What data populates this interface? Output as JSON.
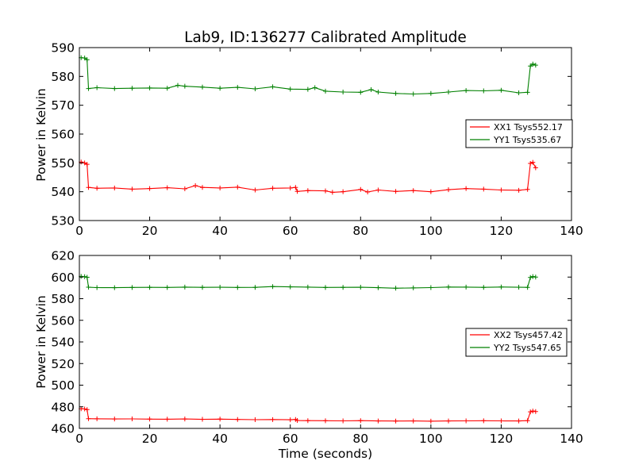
{
  "chart_data": [
    {
      "type": "line",
      "title": "Lab9, ID:136277 Calibrated Amplitude",
      "xlabel": "",
      "ylabel": "Power in Kelvin",
      "xlim": [
        0,
        140
      ],
      "ylim": [
        530,
        590
      ],
      "xticks": [
        "0",
        "20",
        "40",
        "60",
        "80",
        "100",
        "120",
        "140"
      ],
      "yticks": [
        "530",
        "540",
        "550",
        "560",
        "570",
        "580",
        "590"
      ],
      "legend_position": "right",
      "grid": false,
      "series": [
        {
          "name": "XX1 Tsys552.17",
          "color": "#ff0000",
          "marker": "+",
          "x": [
            0.5,
            1.5,
            2.2,
            2.6,
            5,
            10,
            15,
            20,
            25,
            30,
            33,
            35,
            40,
            45,
            50,
            55,
            60,
            61.5,
            62,
            65,
            70,
            72,
            75,
            80,
            82,
            85,
            90,
            95,
            100,
            105,
            110,
            115,
            120,
            125,
            127.5,
            128.3,
            129,
            129.8
          ],
          "values": [
            550.3,
            550.0,
            549.5,
            541.5,
            541.2,
            541.3,
            540.9,
            541.1,
            541.4,
            541.0,
            542.1,
            541.5,
            541.3,
            541.6,
            540.6,
            541.2,
            541.3,
            541.5,
            540.1,
            540.4,
            540.3,
            539.8,
            540.0,
            540.8,
            539.9,
            540.6,
            540.1,
            540.4,
            540.0,
            540.7,
            541.1,
            540.9,
            540.6,
            540.5,
            540.8,
            549.8,
            550.2,
            548.3
          ]
        },
        {
          "name": "YY1 Tsys535.67",
          "color": "#008000",
          "marker": "+",
          "x": [
            0.5,
            1.5,
            2.2,
            2.6,
            5,
            10,
            15,
            20,
            25,
            28,
            30,
            35,
            40,
            45,
            50,
            55,
            60,
            65,
            67,
            70,
            75,
            80,
            83,
            85,
            90,
            95,
            100,
            105,
            110,
            115,
            120,
            125,
            127.5,
            128.3,
            129,
            129.8
          ],
          "values": [
            586.5,
            586.4,
            585.8,
            575.8,
            576.1,
            575.8,
            575.9,
            576.0,
            575.9,
            576.9,
            576.6,
            576.3,
            575.9,
            576.2,
            575.7,
            576.4,
            575.6,
            575.5,
            576.1,
            574.9,
            574.6,
            574.5,
            575.4,
            574.6,
            574.1,
            573.9,
            574.1,
            574.6,
            575.1,
            575.0,
            575.2,
            574.3,
            574.5,
            583.6,
            584.3,
            583.9
          ]
        }
      ]
    },
    {
      "type": "line",
      "title": "",
      "xlabel": "Time (seconds)",
      "ylabel": "Power in Kelvin",
      "xlim": [
        0,
        140
      ],
      "ylim": [
        460,
        620
      ],
      "xticks": [
        "0",
        "20",
        "40",
        "60",
        "80",
        "100",
        "120",
        "140"
      ],
      "yticks": [
        "460",
        "480",
        "500",
        "520",
        "540",
        "560",
        "580",
        "600",
        "620"
      ],
      "legend_position": "right",
      "grid": false,
      "series": [
        {
          "name": "XX2 Tsys457.42",
          "color": "#ff0000",
          "marker": "+",
          "x": [
            0.5,
            1.5,
            2.2,
            2.6,
            5,
            10,
            15,
            20,
            25,
            30,
            35,
            40,
            45,
            50,
            55,
            60,
            61.5,
            62,
            65,
            70,
            75,
            80,
            85,
            90,
            95,
            100,
            105,
            110,
            115,
            120,
            125,
            127.5,
            128.3,
            129,
            129.8
          ],
          "values": [
            478.2,
            478.0,
            477.4,
            469.0,
            468.9,
            468.7,
            468.8,
            468.6,
            468.5,
            468.7,
            468.4,
            468.6,
            468.3,
            468.1,
            468.2,
            468.0,
            468.3,
            467.3,
            467.2,
            467.1,
            467.0,
            467.2,
            466.9,
            466.8,
            466.9,
            466.7,
            466.9,
            467.0,
            467.1,
            467.0,
            466.9,
            467.2,
            475.3,
            476.1,
            475.6
          ]
        },
        {
          "name": "YY2 Tsys547.65",
          "color": "#008000",
          "marker": "+",
          "x": [
            0.5,
            1.5,
            2.2,
            2.6,
            5,
            10,
            15,
            20,
            25,
            30,
            35,
            40,
            45,
            50,
            55,
            60,
            65,
            70,
            75,
            80,
            85,
            90,
            95,
            100,
            105,
            110,
            115,
            120,
            125,
            127.5,
            128.3,
            129,
            129.8
          ],
          "values": [
            600.6,
            600.4,
            599.8,
            590.6,
            590.3,
            590.2,
            590.4,
            590.5,
            590.4,
            590.7,
            590.5,
            590.6,
            590.4,
            590.5,
            591.2,
            590.9,
            590.7,
            590.4,
            590.5,
            590.6,
            590.2,
            589.7,
            590.0,
            590.3,
            590.8,
            590.7,
            590.5,
            590.8,
            590.6,
            590.5,
            599.6,
            600.5,
            600.0
          ]
        }
      ]
    }
  ]
}
